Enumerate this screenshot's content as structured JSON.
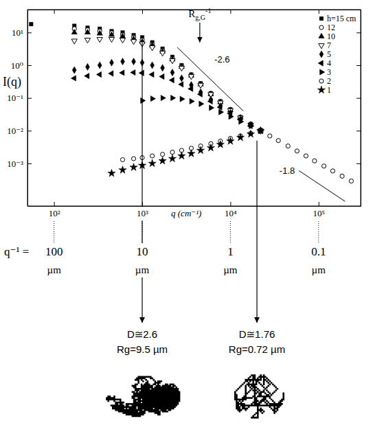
{
  "chart_data": {
    "type": "scatter",
    "x_label": "q (cm⁻¹)",
    "y_label": "I(q)",
    "log": true,
    "xlim": [
      50,
      300000
    ],
    "ylim": [
      5e-05,
      50
    ],
    "xticks": [
      {
        "value": 100,
        "label": "10²"
      },
      {
        "value": 1000,
        "label": "10³"
      },
      {
        "value": 10000,
        "label": "10⁴"
      },
      {
        "value": 100000,
        "label": "10⁵"
      }
    ],
    "yticks": [
      {
        "value": 10,
        "label": "10¹"
      },
      {
        "value": 1,
        "label": "10⁰"
      },
      {
        "value": 0.1,
        "label": "10⁻¹"
      },
      {
        "value": 0.01,
        "label": "10⁻²"
      },
      {
        "value": 0.001,
        "label": "10⁻³"
      }
    ],
    "legend": "top-right",
    "series": [
      {
        "name": "h=15 cm",
        "marker": "square",
        "color": "#000000",
        "x": [
          55,
          170,
          240,
          330,
          450,
          600,
          800,
          1000,
          1300,
          1700,
          2200,
          2800,
          3600,
          4600,
          6000,
          7700,
          10000,
          13000,
          17000,
          22000
        ],
        "values": [
          18,
          16,
          14,
          13,
          11,
          10,
          8.3,
          7.1,
          5.0,
          3.2,
          1.8,
          1.0,
          0.52,
          0.28,
          0.14,
          0.079,
          0.045,
          0.026,
          0.016,
          0.01
        ]
      },
      {
        "name": "12",
        "marker": "circle-open",
        "color": "#000000",
        "x": [
          170,
          240,
          330,
          450,
          600,
          800,
          1000,
          1300,
          1700,
          2200,
          2800,
          3600,
          4600,
          6000,
          7700,
          10000,
          13000,
          17000,
          22000,
          28000,
          35000,
          45000,
          57000,
          72000,
          90000,
          115000,
          145000,
          185000,
          235000
        ],
        "values": [
          13,
          12,
          11,
          9.8,
          8.5,
          7.1,
          5.9,
          4.3,
          2.8,
          1.6,
          0.93,
          0.5,
          0.27,
          0.13,
          0.076,
          0.043,
          0.025,
          0.015,
          0.01,
          0.0069,
          0.005,
          0.0034,
          0.0024,
          0.0017,
          0.0012,
          0.00083,
          0.00059,
          0.00041,
          0.00029
        ]
      },
      {
        "name": "10",
        "marker": "triangle",
        "color": "#000000",
        "x": [
          170,
          240,
          330,
          450,
          600,
          800,
          1000,
          1300,
          1700,
          2200,
          2800,
          3600,
          4600,
          6000,
          7700,
          10000,
          13000,
          17000,
          22000
        ],
        "values": [
          10,
          10,
          9.3,
          8.5,
          7.6,
          6.3,
          5.2,
          4.0,
          2.6,
          1.5,
          0.89,
          0.48,
          0.26,
          0.13,
          0.074,
          0.042,
          0.025,
          0.015,
          0.01
        ]
      },
      {
        "name": "7",
        "marker": "triangle-down-open",
        "color": "#000000",
        "x": [
          170,
          240,
          330,
          450,
          600,
          800,
          1000,
          1300,
          1700,
          2200,
          2800,
          3600,
          4600,
          6000,
          7700,
          10000,
          13000,
          17000,
          22000
        ],
        "values": [
          5.6,
          6.0,
          6.3,
          6.3,
          6.0,
          5.4,
          4.6,
          3.5,
          2.4,
          1.4,
          0.83,
          0.46,
          0.25,
          0.13,
          0.072,
          0.042,
          0.025,
          0.015,
          0.01
        ]
      },
      {
        "name": "5",
        "marker": "diamond",
        "color": "#000000",
        "x": [
          170,
          240,
          330,
          450,
          600,
          800,
          1000,
          1300,
          1700,
          2200,
          2800,
          3600,
          4600,
          6000,
          7700,
          10000,
          13000,
          17000,
          22000
        ],
        "values": [
          0.71,
          0.89,
          1.0,
          1.2,
          1.3,
          1.3,
          1.2,
          1.0,
          0.83,
          0.6,
          0.4,
          0.25,
          0.15,
          0.089,
          0.056,
          0.035,
          0.022,
          0.015,
          0.01
        ]
      },
      {
        "name": "4",
        "marker": "triangle-left",
        "color": "#000000",
        "x": [
          170,
          240,
          330,
          450,
          600,
          800,
          1000,
          1300,
          1700,
          2200,
          2800,
          3600,
          4600,
          6000,
          7700,
          10000,
          13000,
          17000,
          22000
        ],
        "values": [
          0.4,
          0.47,
          0.52,
          0.56,
          0.59,
          0.6,
          0.58,
          0.52,
          0.45,
          0.35,
          0.26,
          0.19,
          0.13,
          0.079,
          0.052,
          0.034,
          0.022,
          0.014,
          0.01
        ]
      },
      {
        "name": "3",
        "marker": "triangle-right",
        "color": "#000000",
        "x": [
          1000,
          1300,
          1700,
          2200,
          2800,
          3600,
          4600,
          6000,
          7700,
          10000,
          13000,
          17000,
          22000
        ],
        "values": [
          0.083,
          0.095,
          0.1,
          0.1,
          0.093,
          0.079,
          0.066,
          0.05,
          0.037,
          0.027,
          0.019,
          0.014,
          0.01
        ]
      },
      {
        "name": "2",
        "marker": "circle-open",
        "color": "#000000",
        "x": [
          600,
          800,
          1000,
          1300,
          1700,
          2200,
          2800,
          3600,
          4600,
          6000,
          7700,
          10000,
          13000,
          17000,
          22000
        ],
        "values": [
          0.0013,
          0.0014,
          0.0015,
          0.0017,
          0.0019,
          0.0022,
          0.0025,
          0.0029,
          0.0034,
          0.004,
          0.0048,
          0.0058,
          0.0069,
          0.0083,
          0.01
        ]
      },
      {
        "name": "1",
        "marker": "star",
        "color": "#000000",
        "x": [
          450,
          600,
          800,
          1000,
          1300,
          1700,
          2200,
          2800,
          3600,
          4600,
          6000,
          7700,
          10000,
          13000,
          17000,
          22000
        ],
        "values": [
          0.0005,
          0.00063,
          0.00076,
          0.00087,
          0.001,
          0.0012,
          0.0014,
          0.0017,
          0.002,
          0.0025,
          0.003,
          0.0038,
          0.0048,
          0.0062,
          0.0079,
          0.01
        ]
      }
    ],
    "slope_lines": [
      {
        "label": "-2.6",
        "x": [
          2500,
          14000
        ],
        "y": [
          3.5,
          0.04
        ]
      },
      {
        "label": "-1.8",
        "x": [
          60000,
          200000
        ],
        "y": [
          0.0006,
          6.9e-05
        ]
      }
    ],
    "arrow": {
      "label": "R",
      "sub": "g,G",
      "sup": "-1",
      "x": 4500,
      "y": [
        20,
        5
      ]
    },
    "q_inverse_axis": {
      "title": "q⁻¹ =",
      "unit": "µm",
      "ticks": [
        100,
        10,
        1,
        0.1
      ]
    },
    "clusters": [
      {
        "q": 1000,
        "y": 5,
        "D": "D≅2.6",
        "Rg": "Rg=9.5 µm"
      },
      {
        "q": 20000,
        "y": 0.005,
        "D": "D≅1.76",
        "Rg": "Rg=0.72 µm"
      }
    ]
  }
}
